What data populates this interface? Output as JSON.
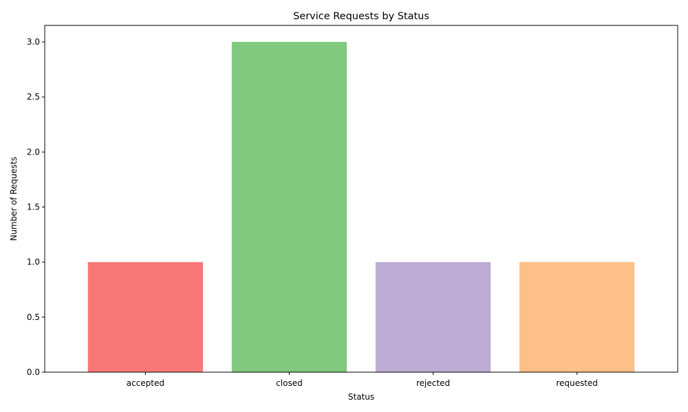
{
  "chart_data": {
    "type": "bar",
    "title": "Service Requests by Status",
    "xlabel": "Status",
    "ylabel": "Number of Requests",
    "categories": [
      "accepted",
      "closed",
      "rejected",
      "requested"
    ],
    "values": [
      1,
      3,
      1,
      1
    ],
    "colors": [
      "#f87878",
      "#80c97f",
      "#bdadd4",
      "#fdc088"
    ],
    "ylim": [
      0,
      3.15
    ],
    "yticks": [
      0.0,
      0.5,
      1.0,
      1.5,
      2.0,
      2.5,
      3.0
    ],
    "ytick_labels": [
      "0.0",
      "0.5",
      "1.0",
      "1.5",
      "2.0",
      "2.5",
      "3.0"
    ],
    "grid": false,
    "legend": "none"
  }
}
